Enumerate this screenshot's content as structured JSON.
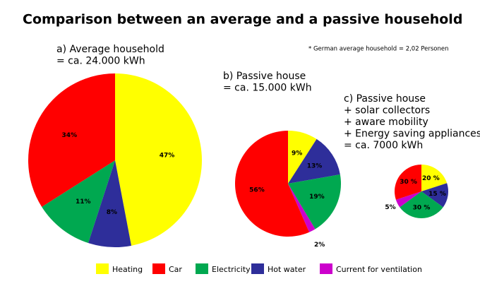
{
  "title": "Comparison between an average and a passive household",
  "note": "* German average household = 2,02 Personen",
  "legend": [
    {
      "name": "Heating",
      "color": "#ffff00"
    },
    {
      "name": "Car",
      "color": "#ff0000"
    },
    {
      "name": "Electricity",
      "color": "#00a850"
    },
    {
      "name": "Hot water",
      "color": "#2e2e9a"
    },
    {
      "name": "Current for ventilation",
      "color": "#cc00cc"
    }
  ],
  "chart_data": [
    {
      "type": "pie",
      "title": [
        "a) Average household",
        "= ca. 24.000 kWh"
      ],
      "values": [
        47,
        8,
        11,
        34
      ],
      "value_labels": [
        "47%",
        "8%",
        "11%",
        "34%"
      ],
      "colors": [
        "#ffff00",
        "#2e2e9a",
        "#00a850",
        "#ff0000"
      ]
    },
    {
      "type": "pie",
      "title": [
        "b) Passive house",
        "= ca. 15.000 kWh"
      ],
      "values": [
        9,
        13,
        19,
        2,
        56
      ],
      "value_labels": [
        "9%",
        "13%",
        "19%",
        "2%",
        "56%"
      ],
      "colors": [
        "#ffff00",
        "#2e2e9a",
        "#00a850",
        "#cc00cc",
        "#ff0000"
      ]
    },
    {
      "type": "pie",
      "title": [
        "c) Passive house",
        "+ solar collectors",
        "+ aware mobility",
        "+ Energy saving appliances",
        "= ca. 7000 kWh"
      ],
      "values": [
        20,
        15,
        30,
        5,
        30
      ],
      "value_labels": [
        "20 %",
        "15 %",
        "30 %",
        "5%",
        "30 %"
      ],
      "colors": [
        "#ffff00",
        "#2e2e9a",
        "#00a850",
        "#cc00cc",
        "#ff0000"
      ]
    }
  ]
}
